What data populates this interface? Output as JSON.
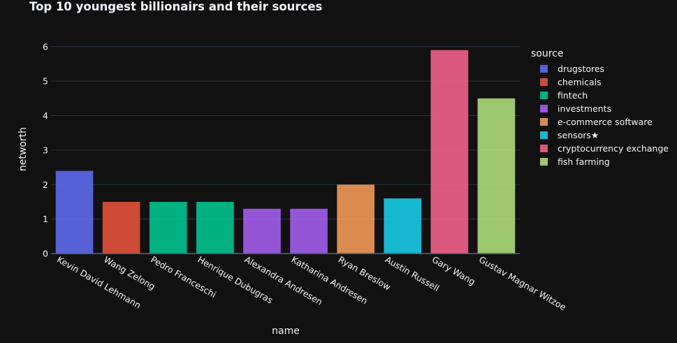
{
  "chart_data": {
    "type": "bar",
    "title": "Top 10 youngest billionairs and their sources",
    "xlabel": "name",
    "ylabel": "networth",
    "ylim": [
      0,
      6.3
    ],
    "yticks": [
      "0",
      "1",
      "2",
      "3",
      "4",
      "5",
      "6"
    ],
    "grid": true,
    "legend_title": "source",
    "legend_position": "right",
    "categories": [
      "Kevin David Lehmann",
      "Wang Zelong",
      "Pedro Franceschi",
      "Henrique Dubugras",
      "Alexandra Andresen",
      "Katharina Andresen",
      "Ryan Breslow",
      "Austin Russell",
      "Gary Wang",
      "Gustav Magnar Witzoe"
    ],
    "values": [
      2.4,
      1.5,
      1.5,
      1.5,
      1.3,
      1.3,
      2.0,
      1.6,
      5.9,
      4.5
    ],
    "bar_source": [
      "drugstores",
      "chemicals",
      "fintech",
      "fintech",
      "investments",
      "investments",
      "e-commerce software",
      "sensors★",
      "cryptocurrency exchange",
      "fish farming"
    ],
    "series": [
      {
        "name": "drugstores",
        "color": "#636efa"
      },
      {
        "name": "chemicals",
        "color": "#ef553b"
      },
      {
        "name": "fintech",
        "color": "#00cc96"
      },
      {
        "name": "investments",
        "color": "#ab63fa"
      },
      {
        "name": "e-commerce software",
        "color": "#ffa15a"
      },
      {
        "name": "sensors★",
        "color": "#19d3f3"
      },
      {
        "name": "cryptocurrency exchange",
        "color": "#ff6692"
      },
      {
        "name": "fish farming",
        "color": "#b6e880"
      }
    ]
  }
}
